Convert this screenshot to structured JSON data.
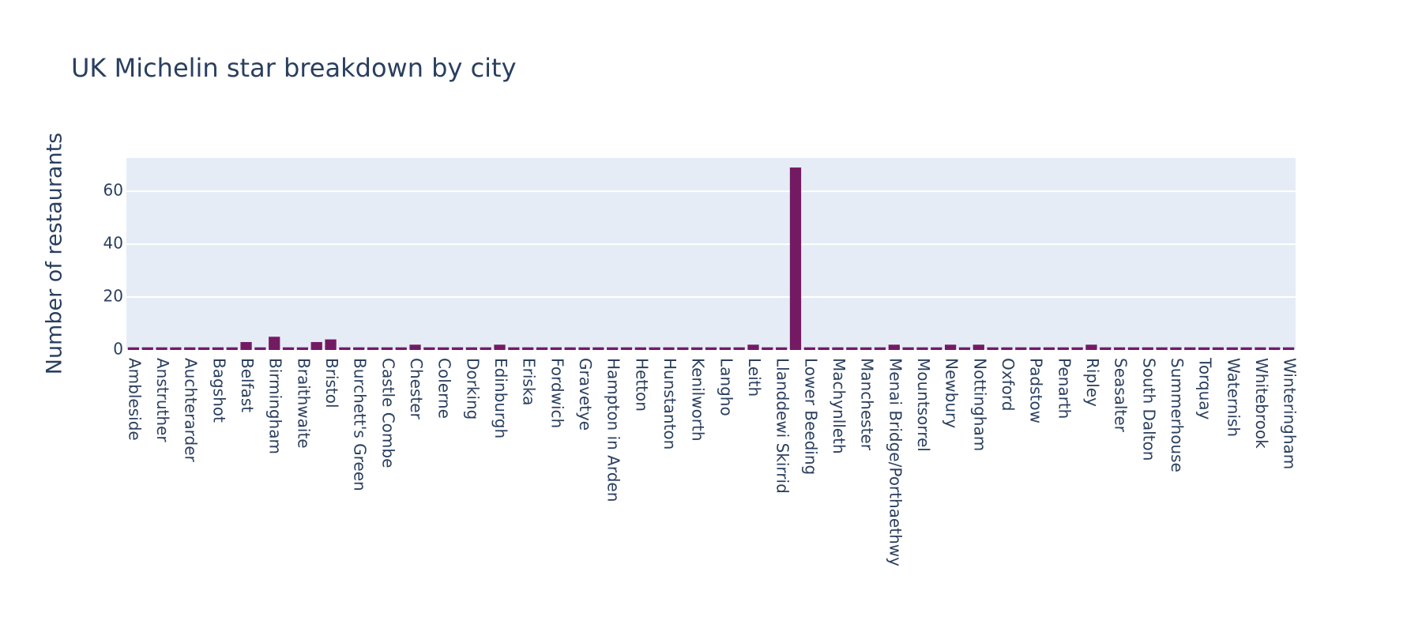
{
  "chart_data": {
    "type": "bar",
    "title": "UK Michelin star breakdown by city",
    "y_label": "Number of restaurants",
    "categories": [
      "Ambleside",
      null,
      "Anstruther",
      null,
      "Auchterarder",
      null,
      "Bagshot",
      null,
      "Belfast",
      null,
      "Birmingham",
      null,
      "Braithwaite",
      null,
      "Bristol",
      null,
      "Burchett's Green",
      null,
      "Castle Combe",
      null,
      "Chester",
      null,
      "Colerne",
      null,
      "Dorking",
      null,
      "Edinburgh",
      null,
      "Eriska",
      null,
      "Fordwich",
      null,
      "Gravetye",
      null,
      "Hampton in Arden",
      null,
      "Hetton",
      null,
      "Hunstanton",
      null,
      "Kenilworth",
      null,
      "Langho",
      null,
      "Leith",
      null,
      "Llanddewi Skirrid",
      null,
      "Lower Beeding",
      null,
      "Machynlleth",
      null,
      "Manchester",
      null,
      "Menai Bridge/Porthaethwy",
      null,
      "Mountsorrel",
      null,
      "Newbury",
      null,
      "Nottingham",
      null,
      "Oxford",
      null,
      "Padstow",
      null,
      "Penarth",
      null,
      "Ripley",
      null,
      "Seasalter",
      null,
      "South Dalton",
      null,
      "Summerhouse",
      null,
      "Torquay",
      null,
      "Waternish",
      null,
      "Whitebrook",
      null,
      "Winteringham"
    ],
    "values": [
      1,
      1,
      1,
      1,
      1,
      1,
      1,
      1,
      3,
      1,
      5,
      1,
      1,
      3,
      4,
      1,
      1,
      1,
      1,
      1,
      2,
      1,
      1,
      1,
      1,
      1,
      2,
      1,
      1,
      1,
      1,
      1,
      1,
      1,
      1,
      1,
      1,
      1,
      1,
      1,
      1,
      1,
      1,
      1,
      2,
      1,
      1,
      69,
      1,
      1,
      1,
      1,
      1,
      1,
      2,
      1,
      1,
      1,
      2,
      1,
      2,
      1,
      1,
      1,
      1,
      1,
      1,
      1,
      2,
      1,
      1,
      1,
      1,
      1,
      1,
      1,
      1,
      1,
      1,
      1,
      1,
      1,
      1
    ],
    "color": "#741a63",
    "ylim": [
      0,
      72.6
    ],
    "yticks": [
      0,
      20,
      40,
      60
    ],
    "grid": true
  }
}
